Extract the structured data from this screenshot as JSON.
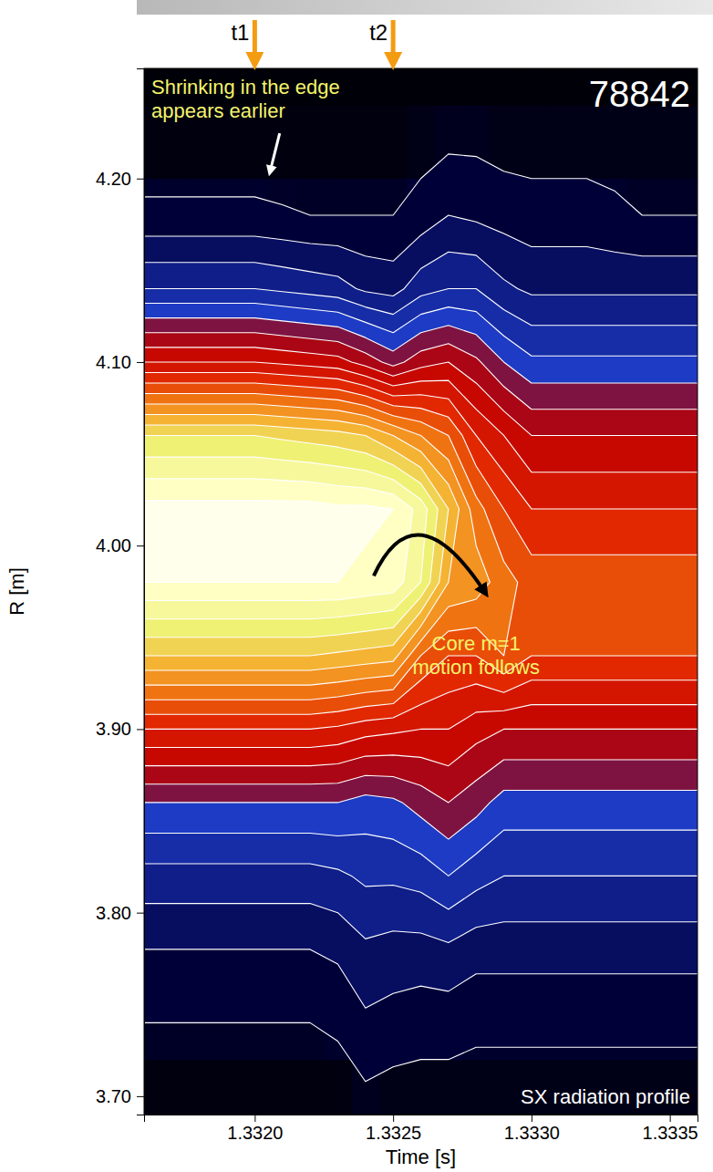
{
  "chart_data": {
    "type": "heatmap",
    "title": "78842",
    "xlabel": "Time [s]",
    "ylabel": "R [m]",
    "annotations": [
      "Shrinking in the edge appears earlier",
      "Core m=1 motion follows",
      "SX radiation profile"
    ],
    "markers": [
      {
        "label": "t1",
        "x": 1.332
      },
      {
        "label": "t2",
        "x": 1.3325
      }
    ],
    "xlim": [
      1.3316,
      1.3336
    ],
    "ylim": [
      3.69,
      4.26
    ],
    "xticks": [
      {
        "value": 1.332,
        "label": "1.3320"
      },
      1.3325,
      {
        "value": 1.333,
        "label": "1.3330"
      },
      1.3335
    ],
    "yticks": [
      {
        "value": 3.7,
        "label": "3.70"
      },
      {
        "value": 3.8,
        "label": "3.80"
      },
      {
        "value": 3.9,
        "label": "3.90"
      },
      {
        "value": 4.0,
        "label": "4.00"
      },
      {
        "value": 4.1,
        "label": "4.10"
      },
      {
        "value": 4.2,
        "label": "4.20"
      }
    ],
    "x": [
      1.3316,
      1.3317,
      1.3318,
      1.3319,
      1.332,
      1.3321,
      1.3322,
      1.3323,
      1.3324,
      1.3325,
      1.3326,
      1.3327,
      1.3328,
      1.3329,
      1.333,
      1.3331,
      1.3332,
      1.3333,
      1.3334,
      1.3335,
      1.3336
    ],
    "y": [
      3.7,
      3.74,
      3.78,
      3.82,
      3.86,
      3.9,
      3.94,
      3.98,
      4.02,
      4.06,
      4.1,
      4.14,
      4.18,
      4.22,
      4.26
    ],
    "z": [
      [
        0.02,
        0.02,
        0.02,
        0.02,
        0.02,
        0.02,
        0.02,
        0.02,
        0.04,
        0.03,
        0.03,
        0.03,
        0.03,
        0.03,
        0.03,
        0.03,
        0.03,
        0.03,
        0.03,
        0.03,
        0.03
      ],
      [
        0.05,
        0.05,
        0.05,
        0.05,
        0.05,
        0.05,
        0.05,
        0.06,
        0.09,
        0.08,
        0.07,
        0.07,
        0.06,
        0.06,
        0.06,
        0.06,
        0.06,
        0.06,
        0.06,
        0.06,
        0.06
      ],
      [
        0.1,
        0.1,
        0.1,
        0.1,
        0.1,
        0.1,
        0.1,
        0.11,
        0.14,
        0.13,
        0.13,
        0.14,
        0.12,
        0.12,
        0.12,
        0.12,
        0.12,
        0.12,
        0.12,
        0.12,
        0.12
      ],
      [
        0.18,
        0.18,
        0.18,
        0.18,
        0.18,
        0.18,
        0.18,
        0.19,
        0.21,
        0.21,
        0.22,
        0.25,
        0.22,
        0.2,
        0.2,
        0.2,
        0.2,
        0.2,
        0.2,
        0.2,
        0.2
      ],
      [
        0.3,
        0.3,
        0.3,
        0.3,
        0.3,
        0.3,
        0.3,
        0.3,
        0.28,
        0.29,
        0.32,
        0.35,
        0.32,
        0.28,
        0.28,
        0.28,
        0.28,
        0.28,
        0.28,
        0.28,
        0.28
      ],
      [
        0.5,
        0.5,
        0.5,
        0.5,
        0.5,
        0.5,
        0.5,
        0.49,
        0.47,
        0.46,
        0.45,
        0.45,
        0.42,
        0.4,
        0.4,
        0.4,
        0.4,
        0.4,
        0.4,
        0.4,
        0.4
      ],
      [
        0.75,
        0.75,
        0.75,
        0.75,
        0.75,
        0.75,
        0.75,
        0.74,
        0.73,
        0.72,
        0.6,
        0.55,
        0.55,
        0.6,
        0.55,
        0.55,
        0.55,
        0.55,
        0.55,
        0.55,
        0.55
      ],
      [
        0.95,
        0.95,
        0.95,
        0.95,
        0.95,
        0.95,
        0.95,
        0.95,
        0.94,
        0.93,
        0.85,
        0.7,
        0.68,
        0.62,
        0.58,
        0.58,
        0.58,
        0.58,
        0.58,
        0.58,
        0.58
      ],
      [
        0.97,
        0.97,
        0.97,
        0.97,
        0.97,
        0.97,
        0.97,
        0.96,
        0.96,
        0.95,
        0.88,
        0.75,
        0.62,
        0.55,
        0.5,
        0.5,
        0.5,
        0.5,
        0.5,
        0.5,
        0.5
      ],
      [
        0.8,
        0.8,
        0.8,
        0.8,
        0.8,
        0.79,
        0.78,
        0.77,
        0.75,
        0.7,
        0.65,
        0.6,
        0.5,
        0.45,
        0.4,
        0.4,
        0.4,
        0.4,
        0.4,
        0.4,
        0.4
      ],
      [
        0.45,
        0.45,
        0.45,
        0.45,
        0.45,
        0.44,
        0.43,
        0.42,
        0.38,
        0.33,
        0.38,
        0.4,
        0.36,
        0.3,
        0.26,
        0.26,
        0.26,
        0.26,
        0.26,
        0.26,
        0.26
      ],
      [
        0.2,
        0.2,
        0.2,
        0.2,
        0.2,
        0.19,
        0.18,
        0.17,
        0.14,
        0.13,
        0.18,
        0.2,
        0.2,
        0.16,
        0.14,
        0.14,
        0.14,
        0.14,
        0.14,
        0.14,
        0.14
      ],
      [
        0.06,
        0.06,
        0.06,
        0.06,
        0.06,
        0.055,
        0.05,
        0.05,
        0.05,
        0.05,
        0.07,
        0.1,
        0.09,
        0.08,
        0.07,
        0.07,
        0.07,
        0.06,
        0.05,
        0.05,
        0.05
      ],
      [
        0.02,
        0.02,
        0.02,
        0.02,
        0.02,
        0.02,
        0.02,
        0.02,
        0.02,
        0.02,
        0.03,
        0.04,
        0.04,
        0.03,
        0.03,
        0.03,
        0.03,
        0.03,
        0.03,
        0.03,
        0.03
      ],
      [
        0.01,
        0.01,
        0.01,
        0.01,
        0.01,
        0.01,
        0.01,
        0.01,
        0.01,
        0.01,
        0.01,
        0.01,
        0.01,
        0.01,
        0.01,
        0.01,
        0.01,
        0.01,
        0.01,
        0.01,
        0.01
      ]
    ],
    "zlim": [
      0,
      1
    ],
    "contour_levels": [
      0.05,
      0.1,
      0.15,
      0.2,
      0.25,
      0.3,
      0.35,
      0.4,
      0.45,
      0.5,
      0.55,
      0.6,
      0.65,
      0.7,
      0.75,
      0.8,
      0.85,
      0.9,
      0.95
    ]
  }
}
